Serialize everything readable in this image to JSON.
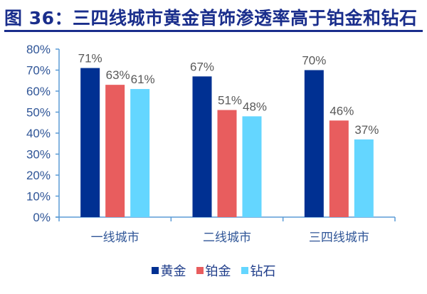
{
  "header": {
    "title": "图 36：三四线城市黄金首饰渗透率高于铂金和钻石"
  },
  "colors": {
    "title": "#1a2e8c",
    "axis": "#5b9bd5",
    "gold": "#003092",
    "platinum": "#e85d5e",
    "diamond": "#64d6ff"
  },
  "chart_data": {
    "type": "bar",
    "title": "三四线城市黄金首饰渗透率高于铂金和钻石",
    "xlabel": "",
    "ylabel": "",
    "categories": [
      "一线城市",
      "二线城市",
      "三四线城市"
    ],
    "series": [
      {
        "name": "黄金",
        "values": [
          71,
          67,
          70
        ],
        "labels": [
          "71%",
          "67%",
          "70%"
        ]
      },
      {
        "name": "铂金",
        "values": [
          63,
          51,
          46
        ],
        "labels": [
          "63%",
          "51%",
          "46%"
        ]
      },
      {
        "name": "钻石",
        "values": [
          61,
          48,
          37
        ],
        "labels": [
          "61%",
          "48%",
          "37%"
        ]
      }
    ],
    "ylim": [
      0,
      80
    ],
    "yticks": [
      "0%",
      "10%",
      "20%",
      "30%",
      "40%",
      "50%",
      "60%",
      "70%",
      "80%"
    ],
    "grid": false,
    "legend_position": "bottom",
    "data_labels": true
  },
  "legend": {
    "items": [
      {
        "label": "黄金"
      },
      {
        "label": "铂金"
      },
      {
        "label": "钻石"
      }
    ]
  }
}
